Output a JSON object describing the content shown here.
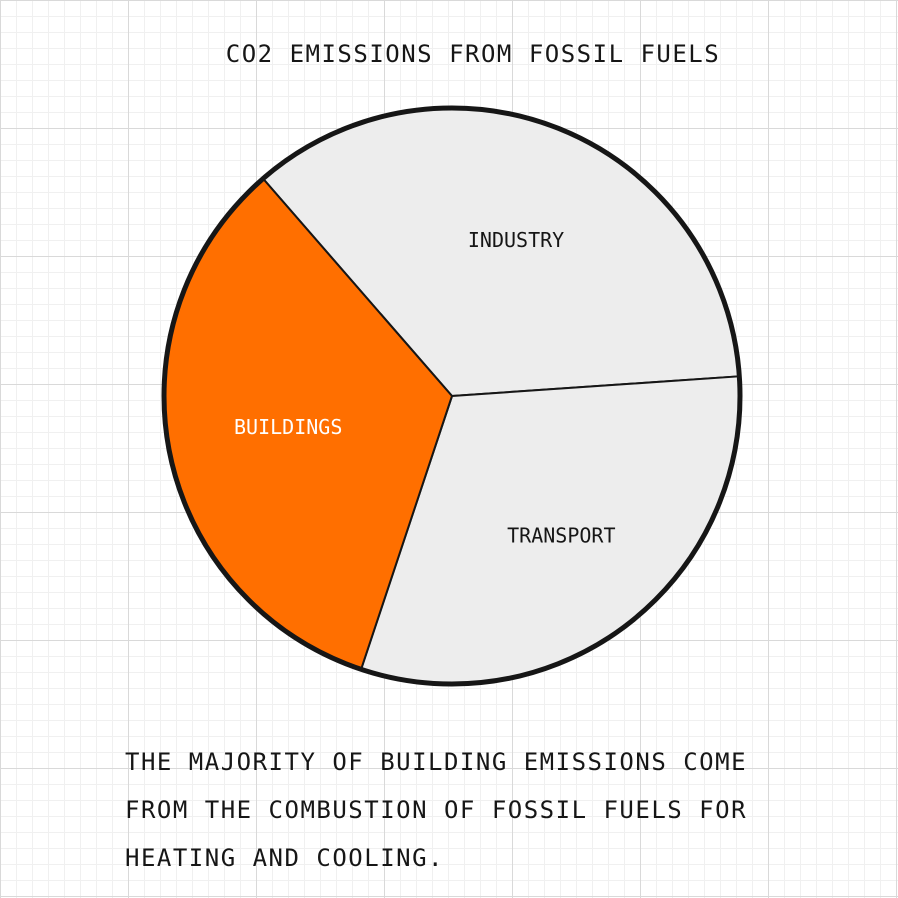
{
  "chart_data": {
    "type": "pie",
    "title": "CO2 EMISSIONS FROM FOSSIL FUELS",
    "slices": [
      {
        "label": "INDUSTRY",
        "value": 35.3,
        "color": "#ededed",
        "label_color": "#161616"
      },
      {
        "label": "TRANSPORT",
        "value": 31.2,
        "color": "#ededed",
        "label_color": "#161616"
      },
      {
        "label": "BUILDINGS",
        "value": 33.5,
        "color": "#ff6f00",
        "label_color": "#ffffff"
      }
    ],
    "start_angle_deg": -41,
    "outline_color": "#161616"
  },
  "footnote": "THE MAJORITY OF BUILDING EMISSIONS COME\nFROM THE COMBUSTION OF FOSSIL FUELS FOR\nHEATING AND COOLING."
}
